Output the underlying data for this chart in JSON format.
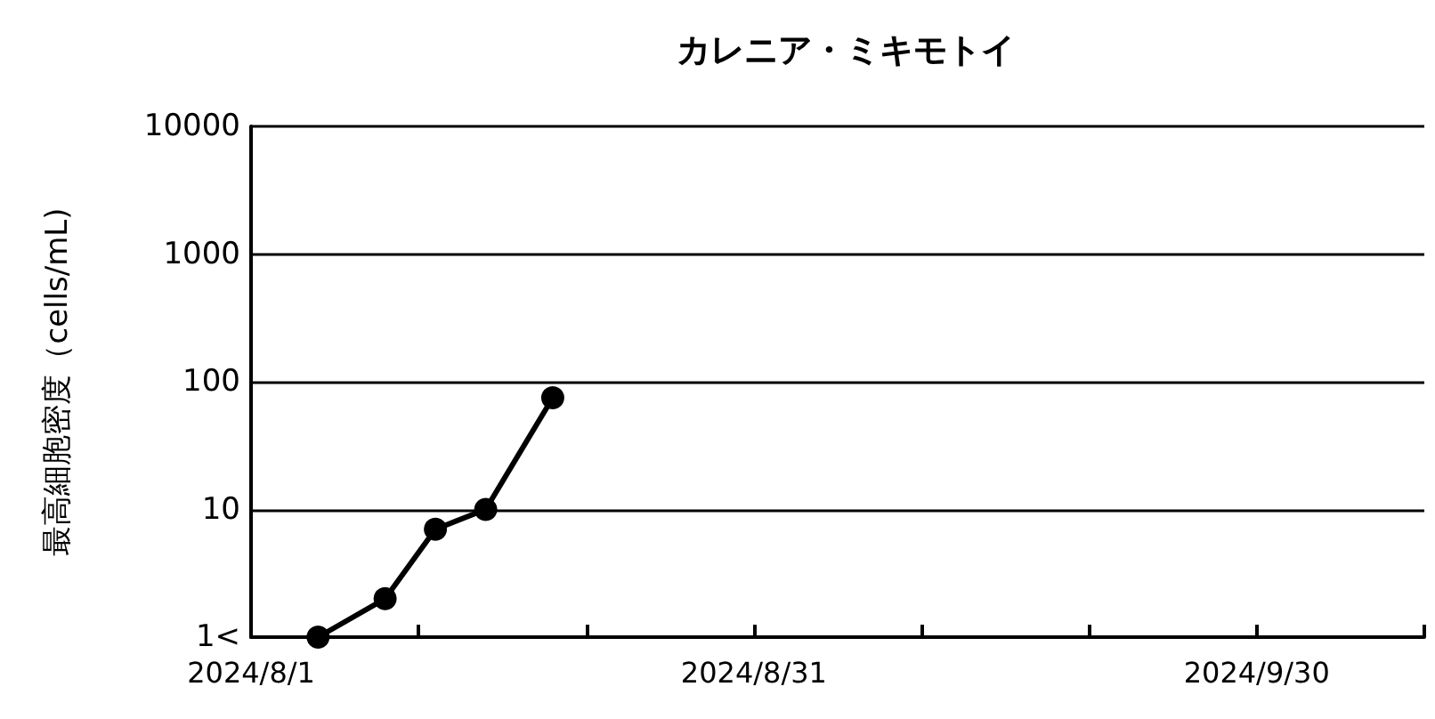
{
  "chart_data": {
    "type": "line",
    "title": "カレニア・ミキモトイ",
    "ylabel": "最高細胞密度（cells/mL)",
    "x": [
      "2024-08-05",
      "2024-08-09",
      "2024-08-12",
      "2024-08-15",
      "2024-08-19"
    ],
    "series": [
      {
        "color": "#000000",
        "values": [
          1,
          2,
          7,
          10,
          75
        ]
      }
    ],
    "xlim": [
      "2024-08-01",
      "2024-10-10"
    ],
    "xticks": [
      {
        "value": "2024-08-01",
        "label": "2024/8/1"
      },
      {
        "value": "2024-08-11",
        "label": null
      },
      {
        "value": "2024-08-21",
        "label": null
      },
      {
        "value": "2024-08-31",
        "label": "2024/8/31"
      },
      {
        "value": "2024-09-10",
        "label": null
      },
      {
        "value": "2024-09-20",
        "label": null
      },
      {
        "value": "2024-09-30",
        "label": "2024/9/30"
      },
      {
        "value": "2024-10-10",
        "label": null
      }
    ],
    "ylim": [
      1,
      10000
    ],
    "yticks": [
      {
        "value": 1,
        "label": "1<"
      },
      10,
      100,
      1000,
      10000
    ],
    "log": "y",
    "grid": "y",
    "marker": "circle",
    "line_style": "solid"
  }
}
